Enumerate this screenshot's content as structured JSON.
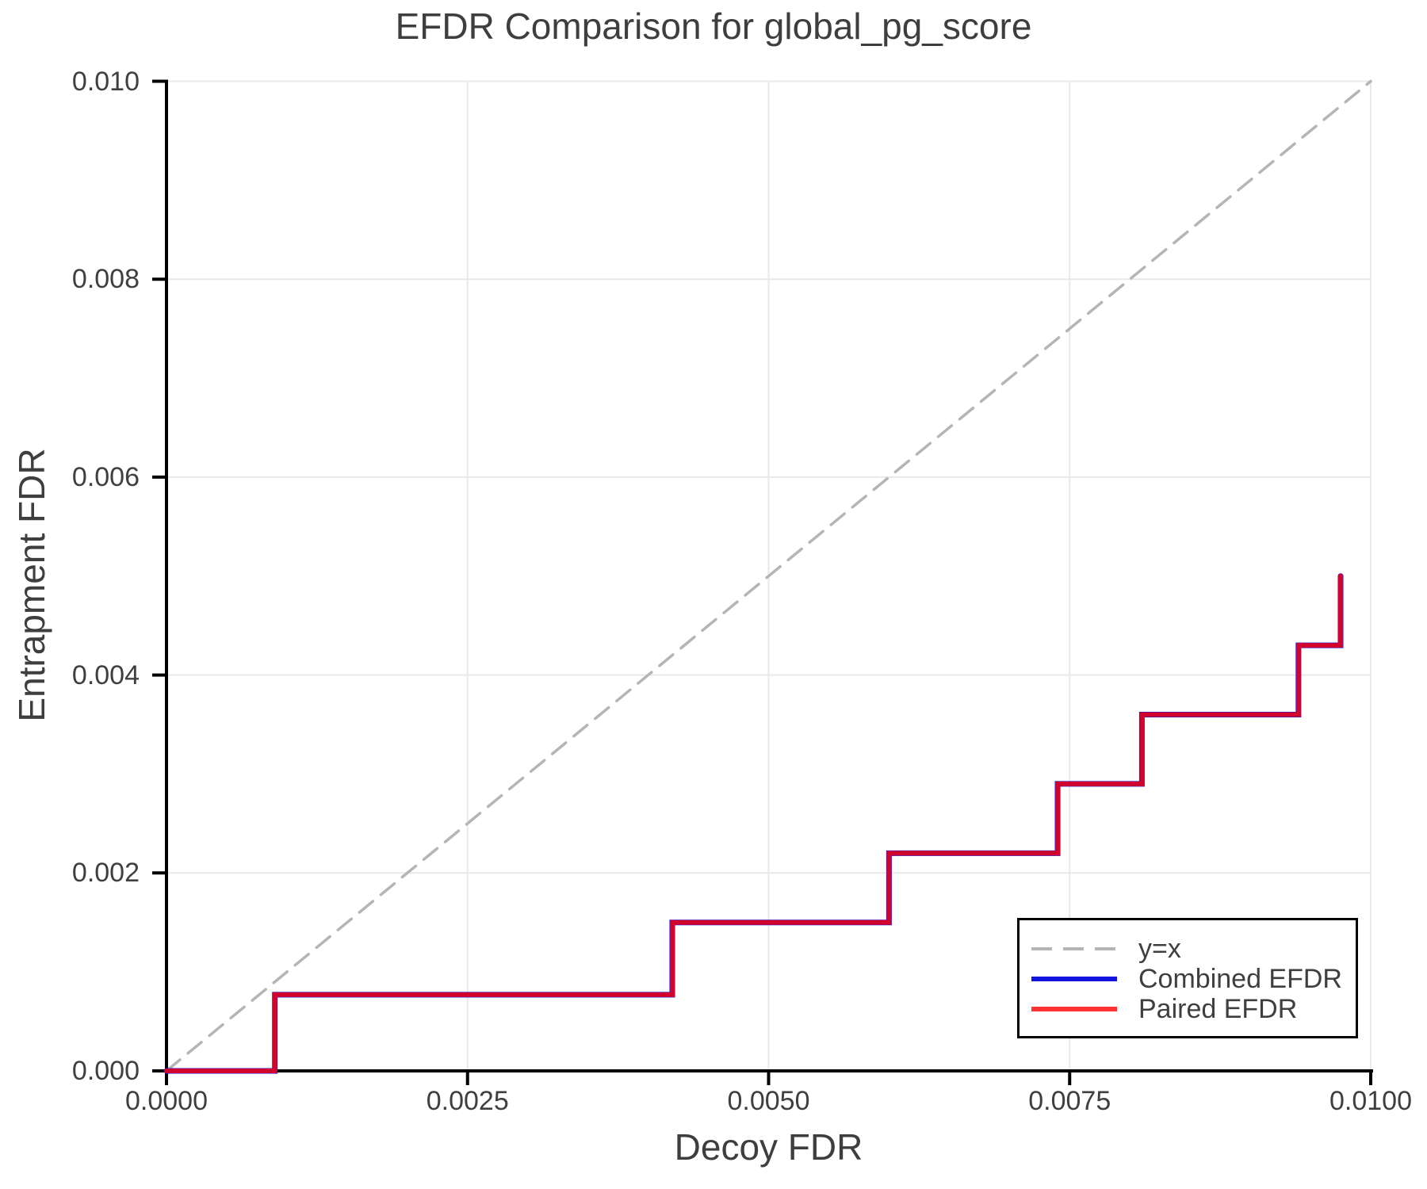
{
  "chart_data": {
    "type": "line",
    "title": "EFDR Comparison for global_pg_score",
    "xlabel": "Decoy FDR",
    "ylabel": "Entrapment FDR",
    "xlim": [
      0,
      0.01
    ],
    "ylim": [
      0,
      0.01
    ],
    "grid": true,
    "grid_color": "#e9e9e9",
    "axis_color": "#000000",
    "text_color": "#3e3e3e",
    "xticks": {
      "values": [
        0,
        0.0025,
        0.005,
        0.0075,
        0.01
      ],
      "labels": [
        "0.0000",
        "0.0025",
        "0.0050",
        "0.0075",
        "0.0100"
      ]
    },
    "yticks": {
      "values": [
        0,
        0.002,
        0.004,
        0.006,
        0.008,
        0.01
      ],
      "labels": [
        "0.000",
        "0.002",
        "0.004",
        "0.006",
        "0.008",
        "0.010"
      ]
    },
    "legend": {
      "position": "lower right"
    },
    "series": [
      {
        "name": "y=x",
        "style": "dashed",
        "color": "#b5b5b5",
        "width": 3.5,
        "points": [
          [
            0,
            0
          ],
          [
            0.01,
            0.01
          ]
        ]
      },
      {
        "name": "Combined EFDR",
        "style": "solid",
        "color": "#1414e0",
        "width": 7,
        "points": [
          [
            0,
            0
          ],
          [
            0.0009,
            0
          ],
          [
            0.0009,
            0.00077
          ],
          [
            0.0042,
            0.00077
          ],
          [
            0.0042,
            0.0015
          ],
          [
            0.006,
            0.0015
          ],
          [
            0.006,
            0.0022
          ],
          [
            0.0074,
            0.0022
          ],
          [
            0.0074,
            0.0029
          ],
          [
            0.0081,
            0.0029
          ],
          [
            0.0081,
            0.0036
          ],
          [
            0.0094,
            0.0036
          ],
          [
            0.0094,
            0.0043
          ],
          [
            0.00975,
            0.0043
          ],
          [
            0.00975,
            0.005
          ]
        ]
      },
      {
        "name": "Paired EFDR",
        "style": "solid",
        "color": "rgba(255,0,0,0.8)",
        "width": 6,
        "points": [
          [
            0,
            0
          ],
          [
            0.0009,
            0
          ],
          [
            0.0009,
            0.00077
          ],
          [
            0.0042,
            0.00077
          ],
          [
            0.0042,
            0.0015
          ],
          [
            0.006,
            0.0015
          ],
          [
            0.006,
            0.0022
          ],
          [
            0.0074,
            0.0022
          ],
          [
            0.0074,
            0.0029
          ],
          [
            0.0081,
            0.0029
          ],
          [
            0.0081,
            0.0036
          ],
          [
            0.0094,
            0.0036
          ],
          [
            0.0094,
            0.0043
          ],
          [
            0.00975,
            0.0043
          ],
          [
            0.00975,
            0.005
          ]
        ]
      }
    ]
  }
}
